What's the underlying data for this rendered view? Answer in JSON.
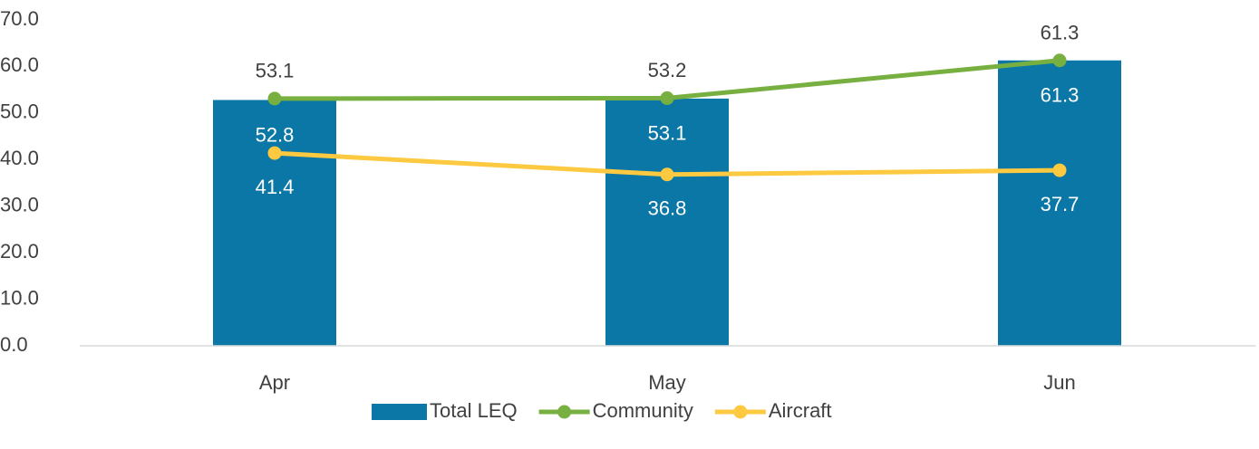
{
  "chart_data": {
    "type": "bar_line",
    "categories": [
      "Apr",
      "May",
      "Jun"
    ],
    "series": [
      {
        "name": "Total LEQ",
        "type": "bar",
        "color": "#0a77a6",
        "values": [
          52.8,
          53.1,
          61.3
        ]
      },
      {
        "name": "Community",
        "type": "line",
        "color": "#77b041",
        "values": [
          53.1,
          53.2,
          61.3
        ]
      },
      {
        "name": "Aircraft",
        "type": "line",
        "color": "#fcc940",
        "values": [
          41.4,
          36.8,
          37.7
        ]
      }
    ],
    "ylim": [
      0,
      70
    ],
    "yticks": [
      {
        "value": 0,
        "label": "0.0"
      },
      {
        "value": 10,
        "label": "10.0"
      },
      {
        "value": 20,
        "label": "20.0"
      },
      {
        "value": 30,
        "label": "30.0"
      },
      {
        "value": 40,
        "label": "40.0"
      },
      {
        "value": 50,
        "label": "50.0"
      },
      {
        "value": 60,
        "label": "60.0"
      },
      {
        "value": 70,
        "label": "70.0"
      }
    ],
    "grid": false,
    "legend": "bottom"
  }
}
